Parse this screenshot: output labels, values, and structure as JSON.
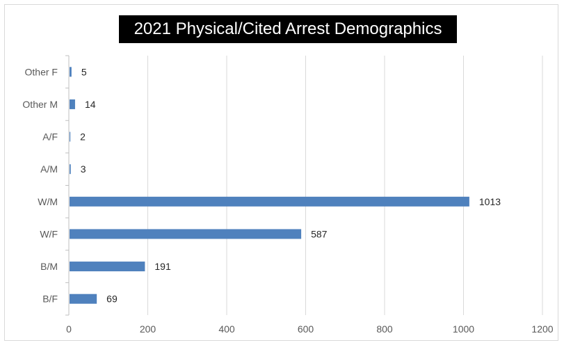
{
  "chart_data": {
    "type": "bar",
    "orientation": "horizontal",
    "title": "2021 Physical/Cited Arrest Demographics",
    "categories": [
      "Other F",
      "Other M",
      "A/F",
      "A/M",
      "W/M",
      "W/F",
      "B/M",
      "B/F"
    ],
    "values": [
      5,
      14,
      2,
      3,
      1013,
      587,
      191,
      69
    ],
    "xlim": [
      0,
      1200
    ],
    "x_ticks": [
      0,
      200,
      400,
      600,
      800,
      1000,
      1200
    ],
    "grid": true,
    "data_labels": true,
    "bar_color": "#4f81bd",
    "title_background": "#000000",
    "title_color": "#ffffff"
  }
}
